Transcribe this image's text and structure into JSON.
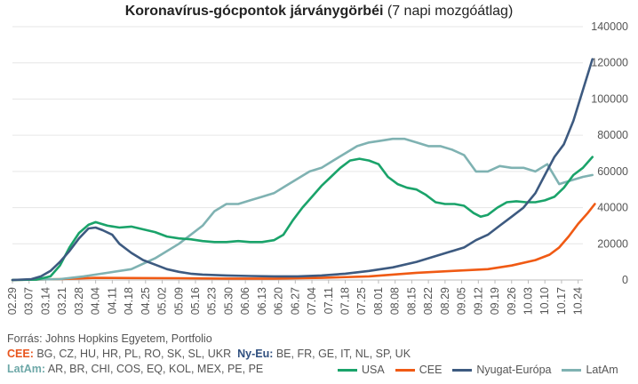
{
  "title_bold": "Koronavírus-gócpontok járványgörbéi",
  "title_rest": " (7 napi mozgóátlag)",
  "source": "Forrás: Johns Hopkins Egyetem, Portfolio",
  "groups": {
    "cee_key": "CEE:",
    "cee_list": " BG, CZ, HU, HR, PL, RO, SK, SL, UKR",
    "nyeu_key": "Ny-Eu:",
    "nyeu_list": " BE, FR, GE, IT, NL, SP, UK",
    "latam_key": "LatAm:",
    "latam_list": " AR, BR, CHI, COS, EQ, KOL, MEX, PE, PE"
  },
  "colors": {
    "USA": "#1aa36a",
    "CEE": "#f05a14",
    "Nyugat-Európa": "#3d5a80",
    "LatAm": "#7fb2b2",
    "cee_key": "#e8541c",
    "nyeu_key": "#2f4f7f",
    "latam_key": "#6ea8a8"
  },
  "chart_data": {
    "type": "line",
    "title": "Koronavírus-gócpontok járványgörbéi (7 napi mozgóátlag)",
    "x_tick_labels": [
      "02.29",
      "03.07",
      "03.14",
      "03.21",
      "03.28",
      "04.04",
      "04.11",
      "04.18",
      "04.25",
      "05.02",
      "05.09",
      "05.16",
      "05.23",
      "05.30",
      "06.06",
      "06.13",
      "06.20",
      "06.27",
      "07.04",
      "07.11",
      "07.18",
      "07.25",
      "08.01",
      "08.08",
      "08.15",
      "08.22",
      "08.29",
      "09.05",
      "09.12",
      "09.19",
      "09.26",
      "10.03",
      "10.10",
      "10.17",
      "10.24"
    ],
    "y_axis_side": "right",
    "ylim": [
      0,
      140000
    ],
    "y_ticks": [
      0,
      20000,
      40000,
      60000,
      80000,
      100000,
      120000,
      140000
    ],
    "y_tick_labels": [
      "0",
      "20000",
      "40000",
      "60000",
      "80000",
      "100000",
      "120000",
      "140000"
    ],
    "grid": "horizontal",
    "legend_position": "bottom-right",
    "x_range_days": [
      0,
      240
    ],
    "series": [
      {
        "name": "USA",
        "points": [
          [
            0,
            0
          ],
          [
            10,
            200
          ],
          [
            16,
            2000
          ],
          [
            20,
            8000
          ],
          [
            24,
            18000
          ],
          [
            28,
            26000
          ],
          [
            32,
            30500
          ],
          [
            35,
            32000
          ],
          [
            40,
            30000
          ],
          [
            45,
            29000
          ],
          [
            50,
            29500
          ],
          [
            55,
            28000
          ],
          [
            60,
            26500
          ],
          [
            65,
            24000
          ],
          [
            70,
            23000
          ],
          [
            75,
            22500
          ],
          [
            80,
            21500
          ],
          [
            85,
            21000
          ],
          [
            90,
            21000
          ],
          [
            95,
            21500
          ],
          [
            100,
            21000
          ],
          [
            105,
            21000
          ],
          [
            110,
            22000
          ],
          [
            114,
            25000
          ],
          [
            118,
            33000
          ],
          [
            122,
            40000
          ],
          [
            126,
            46000
          ],
          [
            130,
            52000
          ],
          [
            134,
            57000
          ],
          [
            138,
            62000
          ],
          [
            142,
            66000
          ],
          [
            146,
            67000
          ],
          [
            150,
            66000
          ],
          [
            154,
            64000
          ],
          [
            158,
            57000
          ],
          [
            162,
            53000
          ],
          [
            166,
            51000
          ],
          [
            170,
            50000
          ],
          [
            174,
            47000
          ],
          [
            178,
            43000
          ],
          [
            182,
            42000
          ],
          [
            186,
            42000
          ],
          [
            190,
            41000
          ],
          [
            194,
            37000
          ],
          [
            197,
            35000
          ],
          [
            200,
            36000
          ],
          [
            204,
            40000
          ],
          [
            208,
            43000
          ],
          [
            212,
            43500
          ],
          [
            216,
            43000
          ],
          [
            220,
            43000
          ],
          [
            224,
            44000
          ],
          [
            228,
            46000
          ],
          [
            232,
            51000
          ],
          [
            236,
            58000
          ],
          [
            240,
            62000
          ],
          [
            244,
            68000
          ]
        ]
      },
      {
        "name": "CEE",
        "points": [
          [
            0,
            0
          ],
          [
            20,
            500
          ],
          [
            35,
            1200
          ],
          [
            50,
            1100
          ],
          [
            70,
            1000
          ],
          [
            90,
            800
          ],
          [
            110,
            800
          ],
          [
            130,
            1200
          ],
          [
            150,
            2000
          ],
          [
            170,
            4000
          ],
          [
            185,
            5000
          ],
          [
            200,
            6000
          ],
          [
            210,
            8000
          ],
          [
            220,
            11000
          ],
          [
            226,
            14000
          ],
          [
            230,
            18000
          ],
          [
            234,
            24000
          ],
          [
            238,
            31000
          ],
          [
            242,
            37000
          ],
          [
            245,
            42000
          ]
        ]
      },
      {
        "name": "Nyugat-Európa",
        "points": [
          [
            0,
            0
          ],
          [
            8,
            500
          ],
          [
            12,
            2000
          ],
          [
            16,
            5000
          ],
          [
            20,
            10000
          ],
          [
            24,
            16000
          ],
          [
            28,
            23000
          ],
          [
            32,
            28500
          ],
          [
            35,
            29000
          ],
          [
            38,
            27500
          ],
          [
            42,
            25000
          ],
          [
            45,
            20000
          ],
          [
            50,
            15000
          ],
          [
            55,
            11000
          ],
          [
            60,
            8500
          ],
          [
            65,
            6000
          ],
          [
            70,
            4500
          ],
          [
            75,
            3500
          ],
          [
            80,
            3000
          ],
          [
            90,
            2500
          ],
          [
            100,
            2200
          ],
          [
            110,
            2000
          ],
          [
            120,
            2000
          ],
          [
            130,
            2500
          ],
          [
            140,
            3500
          ],
          [
            150,
            5000
          ],
          [
            160,
            7000
          ],
          [
            170,
            10000
          ],
          [
            180,
            14000
          ],
          [
            190,
            18000
          ],
          [
            195,
            22000
          ],
          [
            200,
            25000
          ],
          [
            205,
            30000
          ],
          [
            210,
            35000
          ],
          [
            215,
            40000
          ],
          [
            220,
            48000
          ],
          [
            224,
            58000
          ],
          [
            228,
            68000
          ],
          [
            232,
            75000
          ],
          [
            236,
            88000
          ],
          [
            240,
            105000
          ],
          [
            244,
            122000
          ]
        ]
      },
      {
        "name": "LatAm",
        "points": [
          [
            0,
            0
          ],
          [
            20,
            500
          ],
          [
            30,
            2000
          ],
          [
            40,
            4000
          ],
          [
            50,
            6000
          ],
          [
            60,
            12000
          ],
          [
            70,
            20000
          ],
          [
            80,
            30000
          ],
          [
            85,
            38000
          ],
          [
            90,
            42000
          ],
          [
            95,
            42000
          ],
          [
            100,
            44000
          ],
          [
            105,
            46000
          ],
          [
            110,
            48000
          ],
          [
            115,
            52000
          ],
          [
            120,
            56000
          ],
          [
            125,
            60000
          ],
          [
            130,
            62000
          ],
          [
            135,
            66000
          ],
          [
            140,
            70000
          ],
          [
            145,
            74000
          ],
          [
            150,
            76000
          ],
          [
            155,
            77000
          ],
          [
            160,
            78000
          ],
          [
            165,
            78000
          ],
          [
            170,
            76000
          ],
          [
            175,
            74000
          ],
          [
            180,
            74000
          ],
          [
            185,
            72000
          ],
          [
            190,
            69000
          ],
          [
            195,
            60000
          ],
          [
            200,
            60000
          ],
          [
            205,
            63000
          ],
          [
            210,
            62000
          ],
          [
            215,
            62000
          ],
          [
            220,
            60000
          ],
          [
            225,
            64000
          ],
          [
            230,
            53000
          ],
          [
            235,
            55000
          ],
          [
            240,
            57000
          ],
          [
            244,
            58000
          ]
        ]
      }
    ]
  }
}
